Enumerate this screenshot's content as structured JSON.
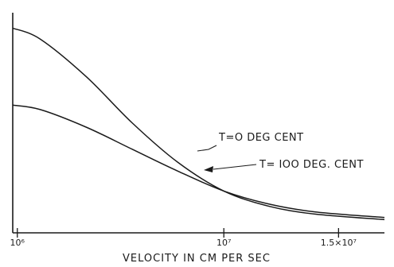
{
  "chart_data": {
    "type": "line",
    "title": "",
    "xlabel": "VELOCITY IN CM PER SEC",
    "ylabel": "",
    "xlim": [
      800000,
      17000000
    ],
    "ylim": [
      0,
      1
    ],
    "grid": false,
    "legend": "none",
    "x_ticks": [
      {
        "value": 1000000,
        "label": "10⁶"
      },
      {
        "value": 10000000,
        "label": "10⁷"
      },
      {
        "value": 15000000,
        "label": "1.5×10⁷"
      }
    ],
    "series": [
      {
        "name": "T=O DEG CENT",
        "x": [
          800000,
          2000000,
          4000000,
          6000000,
          8000000,
          10000000,
          12000000,
          14000000,
          17000000
        ],
        "y": [
          0.93,
          0.88,
          0.71,
          0.5,
          0.32,
          0.19,
          0.12,
          0.085,
          0.06
        ]
      },
      {
        "name": "T= IOO DEG. CENT",
        "x": [
          800000,
          2000000,
          4000000,
          6000000,
          8000000,
          10000000,
          12000000,
          14000000,
          17000000
        ],
        "y": [
          0.58,
          0.56,
          0.48,
          0.38,
          0.28,
          0.19,
          0.13,
          0.095,
          0.07
        ]
      }
    ],
    "annotations": [
      {
        "text": "T=O DEG CENT",
        "series": 0
      },
      {
        "text": "T= IOO DEG. CENT",
        "series": 1
      }
    ]
  }
}
